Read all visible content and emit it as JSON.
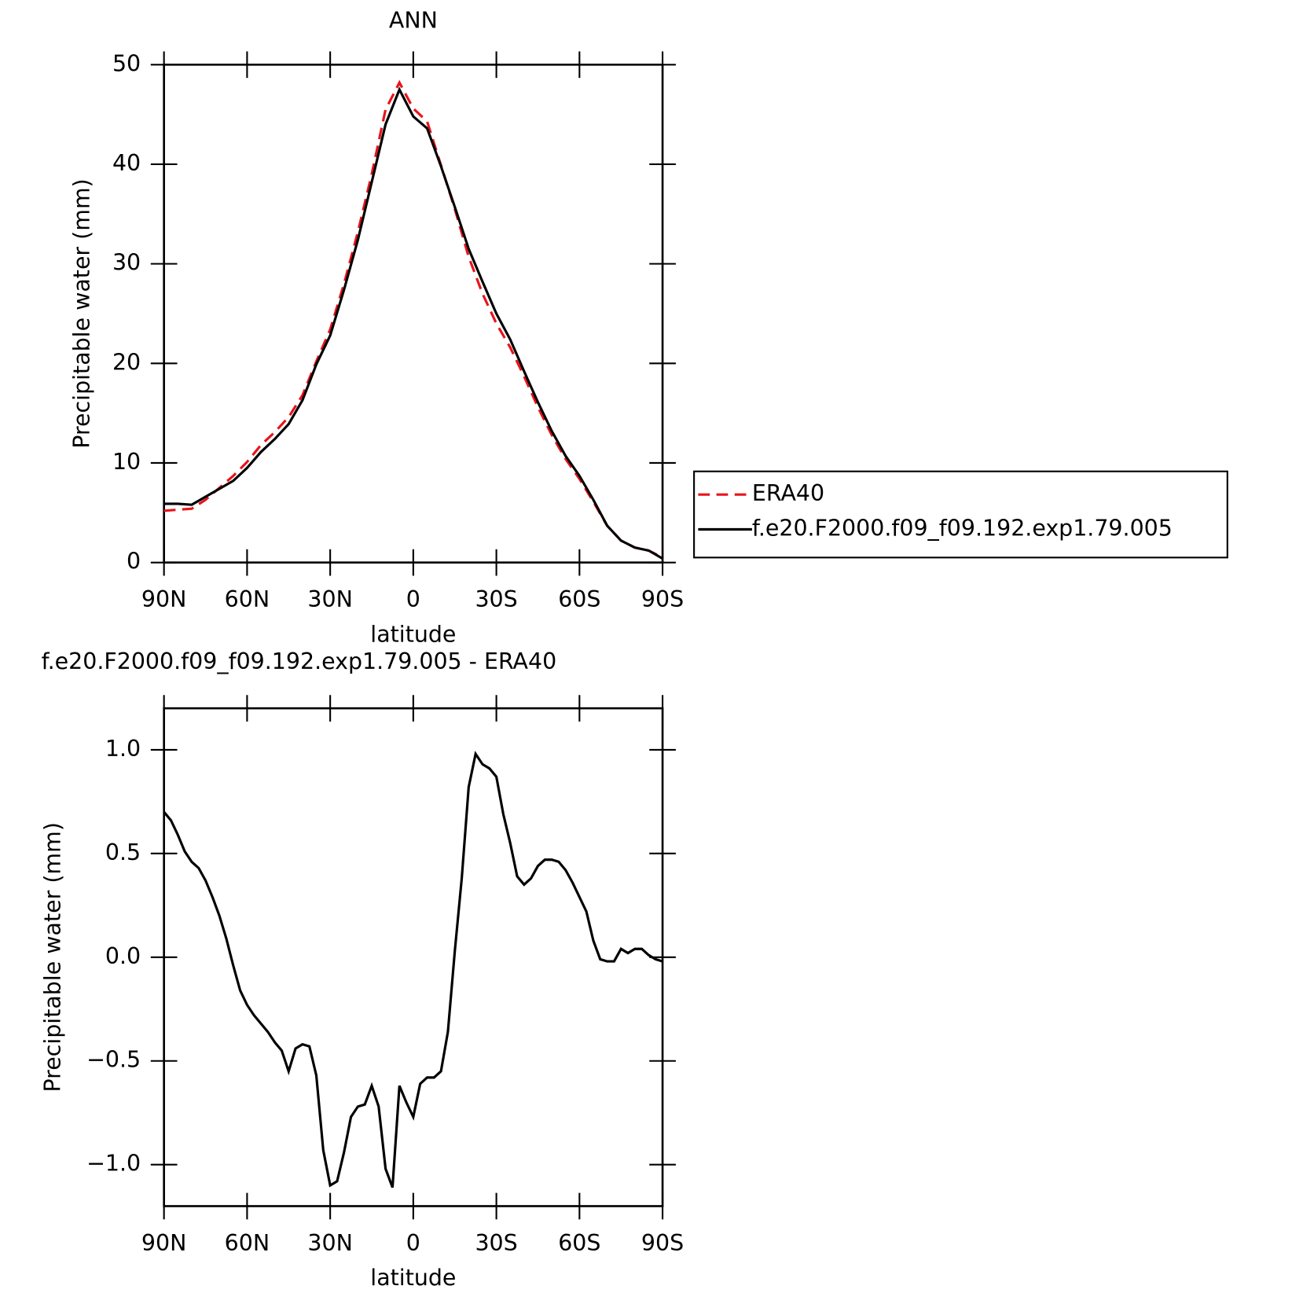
{
  "chart_data": [
    {
      "type": "line",
      "title": "ANN",
      "xlabel": "latitude",
      "ylabel": "Precipitable water (mm)",
      "x": [
        90,
        85,
        80,
        75,
        70,
        65,
        60,
        55,
        50,
        45,
        40,
        35,
        30,
        25,
        20,
        15,
        10,
        5,
        0,
        -5,
        -10,
        -15,
        -20,
        -25,
        -30,
        -35,
        -40,
        -45,
        -50,
        -55,
        -60,
        -65,
        -70,
        -75,
        -80,
        -85,
        -90
      ],
      "series": [
        {
          "name": "ERA40",
          "color": "#e8141c",
          "dash": true,
          "values": [
            5.2,
            5.3,
            5.4,
            6.3,
            7.5,
            8.7,
            10.1,
            11.8,
            13.1,
            14.6,
            16.8,
            20.2,
            23.4,
            28.0,
            33.2,
            39.0,
            45.5,
            48.2,
            45.6,
            44.3,
            39.9,
            35.5,
            30.7,
            27.0,
            24.0,
            21.6,
            18.7,
            15.6,
            12.8,
            10.4,
            8.4,
            6.1,
            3.7,
            2.2,
            1.5,
            1.2,
            0.5
          ]
        },
        {
          "name": "f.e20.F2000.f09_f09.192.exp1.79.005",
          "color": "#000000",
          "dash": false,
          "values": [
            5.9,
            5.9,
            5.8,
            6.6,
            7.4,
            8.2,
            9.5,
            11.1,
            12.4,
            13.9,
            16.3,
            19.9,
            22.8,
            27.4,
            32.4,
            38.2,
            44.0,
            47.5,
            44.8,
            43.6,
            39.8,
            35.7,
            31.5,
            28.2,
            25.0,
            22.4,
            19.2,
            16.1,
            13.2,
            10.7,
            8.7,
            6.3,
            3.7,
            2.2,
            1.5,
            1.2,
            0.4
          ]
        }
      ],
      "xlim": [
        90,
        -90
      ],
      "xticks": [
        {
          "value": 90,
          "label": "90N"
        },
        {
          "value": 60,
          "label": "60N"
        },
        {
          "value": 30,
          "label": "30N"
        },
        0,
        {
          "value": -30,
          "label": "30S"
        },
        {
          "value": -60,
          "label": "60S"
        },
        {
          "value": -90,
          "label": "90S"
        }
      ],
      "ylim": [
        0,
        50
      ],
      "yticks": [
        0,
        10,
        20,
        30,
        40,
        50
      ],
      "legend": "right"
    },
    {
      "type": "line",
      "title": "f.e20.F2000.f09_f09.192.exp1.79.005 - ERA40",
      "xlabel": "latitude",
      "ylabel": "Precipitable water (mm)",
      "x": [
        90,
        87.5,
        85,
        82.5,
        80,
        77.5,
        75,
        72.5,
        70,
        67.5,
        65,
        62.5,
        60,
        57.5,
        55,
        52.5,
        50,
        47.5,
        45,
        42.5,
        40,
        37.5,
        35,
        32.5,
        30,
        27.5,
        25,
        22.5,
        20,
        17.5,
        15,
        12.5,
        10,
        7.5,
        5,
        2.5,
        0,
        -2.5,
        -5,
        -7.5,
        -10,
        -12.5,
        -15,
        -17.5,
        -20,
        -22.5,
        -25,
        -27.5,
        -30,
        -32.5,
        -35,
        -37.5,
        -40,
        -42.5,
        -45,
        -47.5,
        -50,
        -52.5,
        -55,
        -57.5,
        -60,
        -62.5,
        -65,
        -67.5,
        -70,
        -72.5,
        -75,
        -77.5,
        -80,
        -82.5,
        -85,
        -87.5,
        -90
      ],
      "series": [
        {
          "color": "#000000",
          "dash": false,
          "values": [
            0.7,
            0.66,
            0.59,
            0.51,
            0.46,
            0.43,
            0.37,
            0.29,
            0.2,
            0.09,
            -0.04,
            -0.16,
            -0.23,
            -0.28,
            -0.32,
            -0.36,
            -0.41,
            -0.45,
            -0.55,
            -0.44,
            -0.42,
            -0.43,
            -0.57,
            -0.93,
            -1.1,
            -1.08,
            -0.94,
            -0.77,
            -0.72,
            -0.71,
            -0.62,
            -0.72,
            -1.02,
            -1.11,
            -0.62,
            -0.7,
            -0.77,
            -0.61,
            -0.58,
            -0.58,
            -0.55,
            -0.36,
            0.03,
            0.38,
            0.82,
            0.98,
            0.93,
            0.91,
            0.87,
            0.69,
            0.55,
            0.39,
            0.35,
            0.38,
            0.44,
            0.47,
            0.47,
            0.46,
            0.42,
            0.36,
            0.29,
            0.22,
            0.08,
            -0.01,
            -0.02,
            -0.02,
            0.04,
            0.02,
            0.04,
            0.04,
            0.01,
            -0.01,
            -0.02
          ]
        }
      ],
      "xlim": [
        90,
        -90
      ],
      "xticks": [
        {
          "value": 90,
          "label": "90N"
        },
        {
          "value": 60,
          "label": "60N"
        },
        {
          "value": 30,
          "label": "30N"
        },
        0,
        {
          "value": -30,
          "label": "30S"
        },
        {
          "value": -60,
          "label": "60S"
        },
        {
          "value": -90,
          "label": "90S"
        }
      ],
      "ylim": [
        -1.2,
        1.2
      ],
      "yticks": [
        {
          "value": -1.0,
          "label": "−1.0"
        },
        {
          "value": -0.5,
          "label": "−0.5"
        },
        {
          "value": 0.0,
          "label": "0.0"
        },
        {
          "value": 0.5,
          "label": "0.5"
        },
        {
          "value": 1.0,
          "label": "1.0"
        }
      ]
    }
  ]
}
